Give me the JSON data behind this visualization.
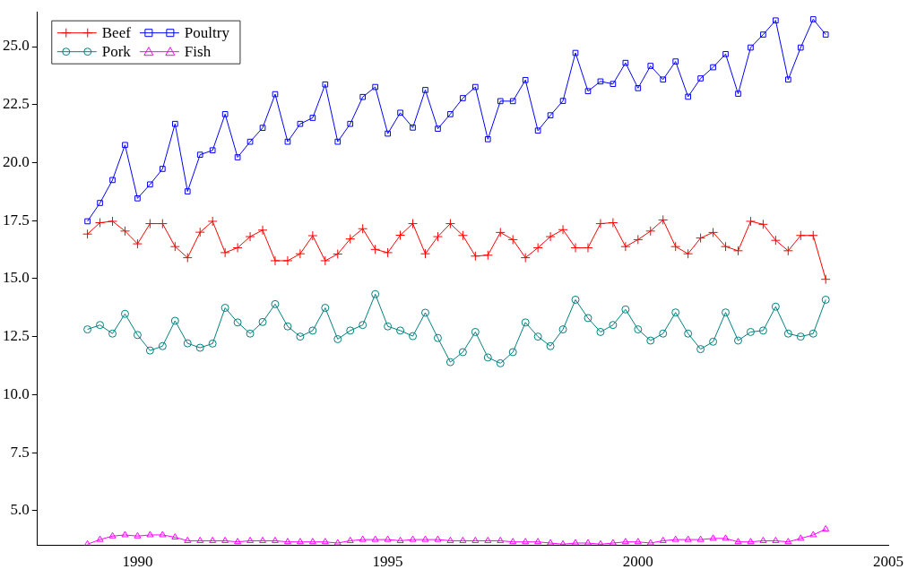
{
  "chart_data": {
    "type": "line",
    "x": [
      1989,
      1989.25,
      1989.5,
      1989.75,
      1990,
      1990.25,
      1990.5,
      1990.75,
      1991,
      1991.25,
      1991.5,
      1991.75,
      1992,
      1992.25,
      1992.5,
      1992.75,
      1993,
      1993.25,
      1993.5,
      1993.75,
      1994,
      1994.25,
      1994.5,
      1994.75,
      1995,
      1995.25,
      1995.5,
      1995.75,
      1996,
      1996.25,
      1996.5,
      1996.75,
      1997,
      1997.25,
      1997.5,
      1997.75,
      1998,
      1998.25,
      1998.5,
      1998.75,
      1999,
      1999.25,
      1999.5,
      1999.75,
      2000,
      2000.25,
      2000.5,
      2000.75,
      2001,
      2001.25,
      2001.5,
      2001.75,
      2002,
      2002.25,
      2002.5,
      2002.75,
      2003,
      2003.25,
      2003.5,
      2003.75
    ],
    "series": [
      {
        "name": "Beef",
        "color": "#ff0000",
        "marker": "cross",
        "values": [
          16.92,
          17.41,
          17.47,
          17.05,
          16.5,
          17.37,
          17.37,
          16.38,
          15.9,
          17.0,
          17.47,
          16.12,
          16.33,
          16.81,
          17.09,
          15.77,
          15.77,
          16.07,
          16.85,
          15.77,
          16.06,
          16.71,
          17.15,
          16.26,
          16.12,
          16.87,
          17.37,
          16.07,
          16.81,
          17.37,
          16.86,
          15.97,
          16.01,
          16.99,
          16.68,
          15.9,
          16.33,
          16.81,
          17.11,
          16.33,
          16.33,
          17.37,
          17.41,
          16.38,
          16.68,
          17.05,
          17.53,
          16.38,
          16.07,
          16.75,
          16.99,
          16.38,
          16.2,
          17.47,
          17.34,
          16.65,
          16.2,
          16.86,
          16.86,
          14.97
        ]
      },
      {
        "name": "Poultry",
        "color": "#0000ff",
        "marker": "square",
        "values": [
          17.47,
          18.26,
          19.25,
          20.76,
          18.46,
          19.06,
          19.73,
          21.67,
          18.76,
          20.34,
          20.53,
          22.09,
          20.23,
          20.9,
          21.5,
          22.95,
          20.9,
          21.67,
          21.93,
          23.37,
          20.9,
          21.67,
          22.83,
          23.26,
          21.25,
          22.15,
          21.51,
          23.13,
          21.46,
          22.09,
          22.78,
          23.26,
          21.01,
          22.65,
          22.65,
          23.56,
          21.38,
          22.04,
          22.66,
          24.73,
          23.08,
          23.5,
          23.39,
          24.3,
          23.21,
          24.17,
          23.58,
          24.36,
          22.84,
          23.63,
          24.11,
          24.68,
          22.97,
          24.96,
          25.52,
          26.13,
          23.58,
          24.96,
          26.18,
          25.52
        ]
      },
      {
        "name": "Pork",
        "color": "#008080",
        "marker": "circle",
        "values": [
          12.81,
          13.0,
          12.63,
          13.48,
          12.57,
          11.9,
          12.09,
          13.18,
          12.21,
          12.02,
          12.2,
          13.74,
          13.11,
          12.63,
          13.13,
          13.9,
          12.94,
          12.5,
          12.76,
          13.74,
          12.39,
          12.76,
          13.0,
          14.33,
          12.94,
          12.76,
          12.52,
          13.53,
          12.44,
          11.4,
          11.83,
          12.7,
          11.6,
          11.35,
          11.83,
          13.11,
          12.5,
          12.09,
          12.81,
          14.09,
          13.3,
          12.7,
          13.0,
          13.67,
          12.81,
          12.33,
          12.63,
          13.54,
          12.63,
          11.96,
          12.28,
          13.54,
          12.33,
          12.7,
          12.76,
          13.79,
          12.63,
          12.5,
          12.63,
          14.09
        ]
      },
      {
        "name": "Fish",
        "color": "#ff00ff",
        "marker": "triangle",
        "values": [
          3.55,
          3.75,
          3.9,
          3.95,
          3.9,
          3.95,
          3.95,
          3.85,
          3.7,
          3.7,
          3.7,
          3.7,
          3.65,
          3.7,
          3.7,
          3.7,
          3.65,
          3.65,
          3.65,
          3.65,
          3.6,
          3.7,
          3.75,
          3.75,
          3.75,
          3.7,
          3.75,
          3.75,
          3.75,
          3.7,
          3.7,
          3.7,
          3.7,
          3.7,
          3.65,
          3.65,
          3.65,
          3.6,
          3.55,
          3.6,
          3.6,
          3.55,
          3.6,
          3.65,
          3.65,
          3.6,
          3.7,
          3.75,
          3.75,
          3.75,
          3.8,
          3.8,
          3.65,
          3.65,
          3.7,
          3.7,
          3.65,
          3.8,
          3.95,
          4.2
        ]
      }
    ],
    "xlim": [
      1988,
      2005
    ],
    "xticks": [
      1990,
      1995,
      2000,
      2005
    ],
    "ylim": [
      3.5,
      26.5
    ],
    "yticks": [
      {
        "value": 5,
        "label": "5.0"
      },
      {
        "value": 7.5,
        "label": "7.5"
      },
      {
        "value": 10,
        "label": "10.0"
      },
      {
        "value": 12.5,
        "label": "12.5"
      },
      {
        "value": 15,
        "label": "15.0"
      },
      {
        "value": 17.5,
        "label": "17.5"
      },
      {
        "value": 20,
        "label": "20.0"
      },
      {
        "value": 22.5,
        "label": "22.5"
      },
      {
        "value": 25,
        "label": "25.0"
      }
    ],
    "grid": false,
    "legend": "top left"
  }
}
